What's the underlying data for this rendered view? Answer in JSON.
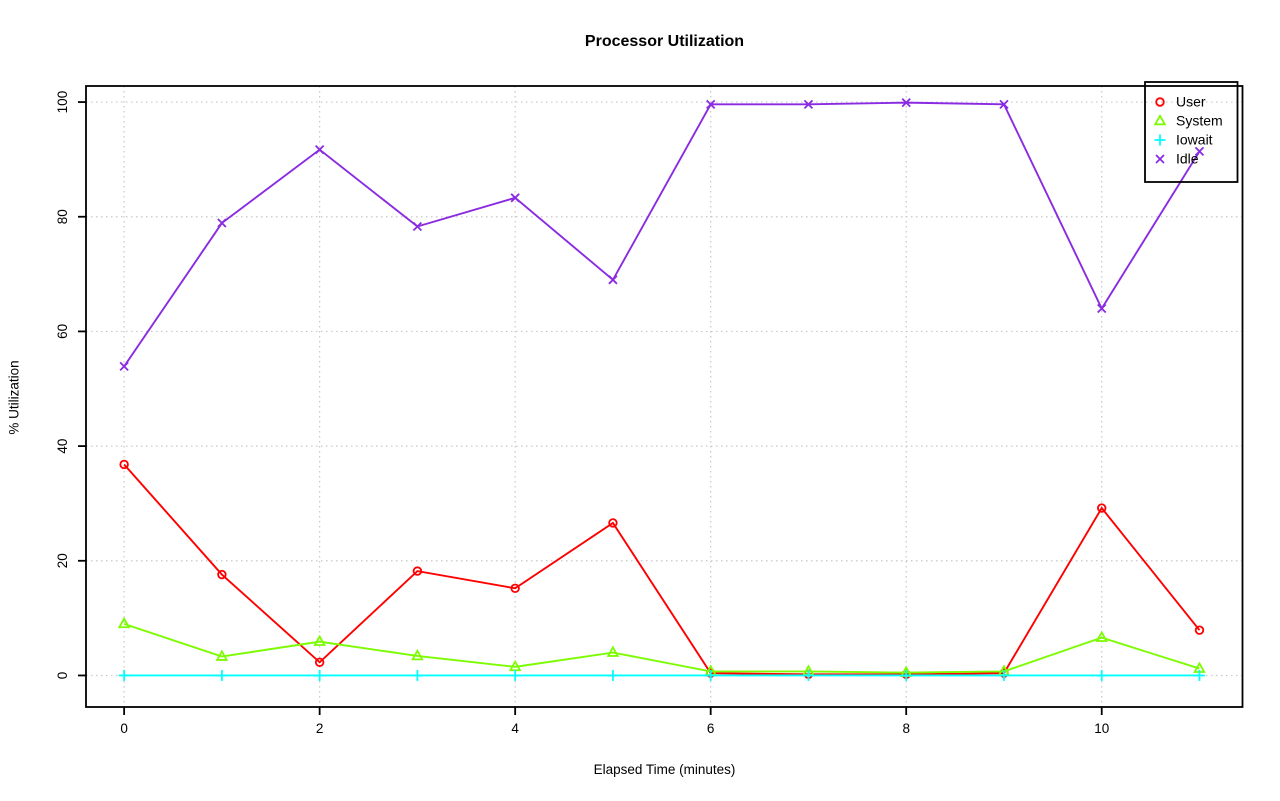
{
  "chart_data": {
    "type": "line",
    "title": "Processor Utilization",
    "xlabel": "Elapsed Time (minutes)",
    "ylabel": "% Utilization",
    "x": [
      0,
      1,
      2,
      3,
      4,
      5,
      6,
      7,
      8,
      9,
      10,
      11
    ],
    "series": [
      {
        "name": "User",
        "marker": "circle",
        "color": "#FF0000",
        "values": [
          36.8,
          17.6,
          2.3,
          18.2,
          15.2,
          26.6,
          0.4,
          0.2,
          0.2,
          0.4,
          29.2,
          7.9
        ]
      },
      {
        "name": "System",
        "marker": "triangle",
        "color": "#7CFC00",
        "values": [
          9.0,
          3.3,
          5.9,
          3.4,
          1.5,
          4.0,
          0.7,
          0.7,
          0.5,
          0.7,
          6.6,
          1.2
        ]
      },
      {
        "name": "Iowait",
        "marker": "plus",
        "color": "#00FFFF",
        "values": [
          0,
          0,
          0,
          0,
          0,
          0,
          0,
          0,
          0,
          0,
          0,
          0
        ]
      },
      {
        "name": "Idle",
        "marker": "x",
        "color": "#8A2BE2",
        "values": [
          53.9,
          78.9,
          91.7,
          78.3,
          83.3,
          69.0,
          99.6,
          99.6,
          99.9,
          99.6,
          64.0,
          91.4
        ]
      }
    ],
    "xticks": [
      0,
      2,
      4,
      6,
      8,
      10
    ],
    "yticks": [
      0,
      20,
      40,
      60,
      80,
      100
    ],
    "xlim": [
      -0.39,
      11.44
    ],
    "ylim": [
      -5.5,
      102.8
    ],
    "grid": true,
    "grid_color": "#C8C8C8",
    "axis_color": "#000000",
    "legend_position": "top-right",
    "legend_labels": [
      "User",
      "System",
      "Iowait",
      "Idle"
    ]
  }
}
